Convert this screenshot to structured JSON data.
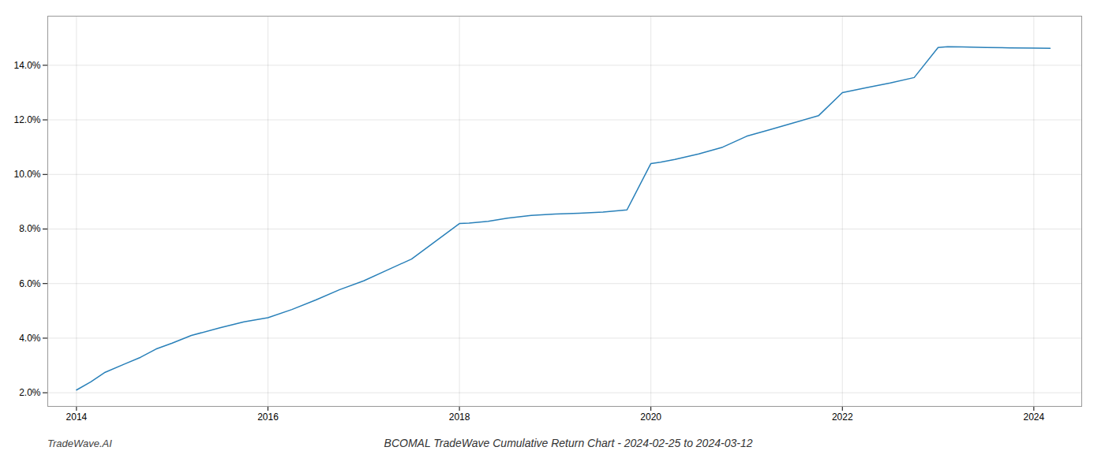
{
  "chart_data": {
    "type": "line",
    "title": "BCOMAL TradeWave Cumulative Return Chart - 2024-02-25 to 2024-03-12",
    "annotations": [
      "TradeWave.AI"
    ],
    "x": [
      2014.0,
      2014.15,
      2014.3,
      2014.5,
      2014.67,
      2014.83,
      2015.0,
      2015.2,
      2015.5,
      2015.75,
      2016.0,
      2016.25,
      2016.5,
      2016.75,
      2017.0,
      2017.25,
      2017.5,
      2017.75,
      2018.0,
      2018.1,
      2018.3,
      2018.5,
      2018.75,
      2019.0,
      2019.25,
      2019.5,
      2019.75,
      2020.0,
      2020.1,
      2020.25,
      2020.5,
      2020.75,
      2021.0,
      2021.25,
      2021.5,
      2021.75,
      2022.0,
      2022.25,
      2022.5,
      2022.75,
      2023.0,
      2023.1,
      2023.25,
      2023.5,
      2023.75,
      2024.0,
      2024.17
    ],
    "values": [
      2.1,
      2.4,
      2.75,
      3.05,
      3.3,
      3.6,
      3.82,
      4.1,
      4.38,
      4.6,
      4.75,
      5.05,
      5.4,
      5.78,
      6.1,
      6.5,
      6.9,
      7.55,
      8.2,
      8.22,
      8.28,
      8.4,
      8.5,
      8.55,
      8.58,
      8.62,
      8.7,
      10.4,
      10.45,
      10.55,
      10.75,
      11.0,
      11.4,
      11.65,
      11.9,
      12.15,
      13.0,
      13.18,
      13.35,
      13.55,
      14.65,
      14.68,
      14.67,
      14.65,
      14.64,
      14.63,
      14.62
    ],
    "color": "#2980b9",
    "xlim": [
      2013.7,
      2024.5
    ],
    "xticks": [
      2014,
      2016,
      2018,
      2020,
      2022,
      2024
    ],
    "ylim": [
      1.5,
      15.8
    ],
    "yticks": [
      {
        "value": 2.0,
        "label": "2.0%"
      },
      {
        "value": 4.0,
        "label": "4.0%"
      },
      {
        "value": 6.0,
        "label": "6.0%"
      },
      {
        "value": 8.0,
        "label": "8.0%"
      },
      {
        "value": 10.0,
        "label": "10.0%"
      },
      {
        "value": 12.0,
        "label": "12.0%"
      },
      {
        "value": 14.0,
        "label": "14.0%"
      }
    ],
    "grid": true
  }
}
